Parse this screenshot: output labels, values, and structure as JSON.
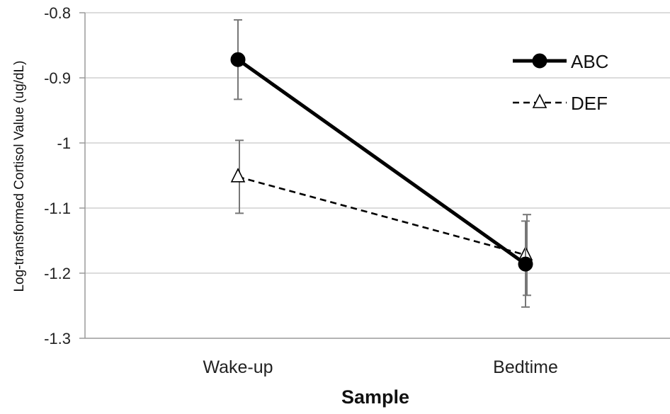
{
  "chart_data": {
    "type": "line",
    "title": "",
    "xlabel": "Sample",
    "ylabel": "Log-transformed Cortisol Value (ug/dL)",
    "categories": [
      "Wake-up",
      "Bedtime"
    ],
    "ylim": [
      -1.3,
      -0.8
    ],
    "yticks": [
      -0.8,
      -0.9,
      -1,
      -1.1,
      -1.2,
      -1.3
    ],
    "ytick_labels": [
      "-0.8",
      "-0.9",
      "-1",
      "-1.1",
      "-1.2",
      "-1.3"
    ],
    "grid": "horizontal",
    "legend_position": "top-right",
    "series": [
      {
        "name": "ABC",
        "values": [
          -0.872,
          -1.186
        ],
        "errors": [
          0.061,
          0.066
        ],
        "line_style": "solid",
        "marker": "filled-circle",
        "color": "#000000"
      },
      {
        "name": "DEF",
        "values": [
          -1.052,
          -1.172
        ],
        "errors": [
          0.056,
          0.062
        ],
        "line_style": "dashed",
        "marker": "open-triangle",
        "color": "#000000"
      }
    ]
  }
}
